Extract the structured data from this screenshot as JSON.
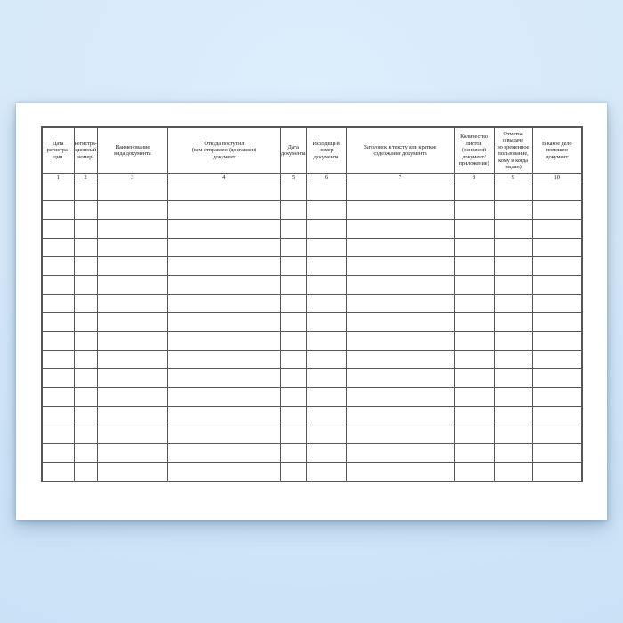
{
  "background": {
    "top_color": "#ddeefc",
    "bottom_color": "#c5ddf4"
  },
  "page": {
    "paper_color": "#ffffff",
    "grid_color": "#575757"
  },
  "table": {
    "columns": [
      {
        "number": "1",
        "header": "Дата\nрегистра-\nции"
      },
      {
        "number": "2",
        "header": "Регистра-\nционный\nномер¹"
      },
      {
        "number": "3",
        "header": "Наименование\nвида документа"
      },
      {
        "number": "4",
        "header": "Откуда поступил\n(кем отправлен (доставлен)\nдокумент"
      },
      {
        "number": "5",
        "header": "Дата\nдокумента"
      },
      {
        "number": "6",
        "header": "Исходящий\nномер\nдокумента"
      },
      {
        "number": "7",
        "header": "Заголовок к тексту или краткое\nсодержание документа"
      },
      {
        "number": "8",
        "header": "Количество\nлистов\n(основной\nдокумент/\nприложение)"
      },
      {
        "number": "9",
        "header": "Отметка\nо выдаче\nво временное\nпользование,\nкому и когда\nвыдан)"
      },
      {
        "number": "10",
        "header": "В какое дело\nпомещен\nдокумент"
      }
    ],
    "empty_row_count": 16,
    "empty_cell_value": ""
  }
}
